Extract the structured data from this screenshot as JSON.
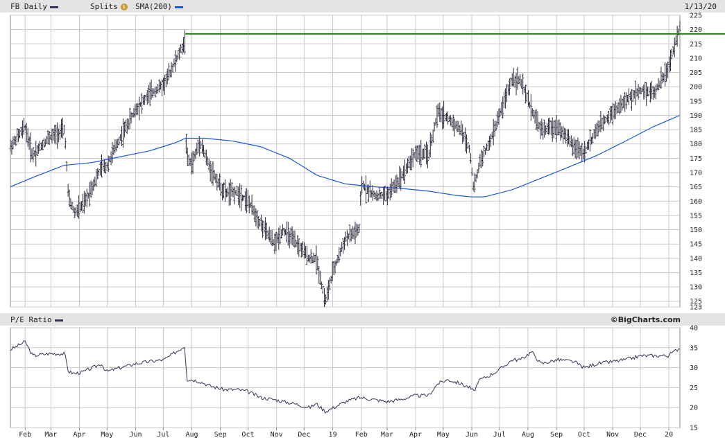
{
  "header": {
    "symbol_label": "FB Daily",
    "splits_label": "Splits",
    "splits_icon": "dollar-icon",
    "sma_label": "SMA(200)",
    "date": "1/13/20",
    "symbol_color": "#33335a",
    "sma_color": "#1a55e0"
  },
  "lower_header": {
    "pe_label": "P/E Ratio",
    "brand": "©BigCharts.com",
    "pe_color": "#33335a"
  },
  "accent": {
    "resistance_color": "#2e7d1a"
  },
  "chart_data": [
    {
      "type": "line",
      "title": "FB Daily",
      "subtype": "ohlc-bars-with-sma",
      "ylim": [
        123,
        225
      ],
      "yticks": [
        123,
        125,
        130,
        135,
        140,
        145,
        150,
        155,
        160,
        165,
        170,
        175,
        180,
        185,
        190,
        195,
        200,
        205,
        210,
        215,
        220,
        225
      ],
      "grid": true,
      "x_labels": [
        "Feb",
        "Mar",
        "Apr",
        "May",
        "Jun",
        "Jul",
        "Aug",
        "Sep",
        "Oct",
        "Nov",
        "Dec",
        "19",
        "Feb",
        "Mar",
        "Apr",
        "May",
        "Jun",
        "Jul",
        "Aug",
        "Sep",
        "Oct",
        "Nov",
        "Dec",
        "20"
      ],
      "resistance_level": 218.5,
      "series": [
        {
          "name": "FB Daily",
          "x": [
            "2018-01-16",
            "2018-02-01",
            "2018-02-09",
            "2018-02-26",
            "2018-03-16",
            "2018-03-20",
            "2018-03-27",
            "2018-04-06",
            "2018-04-25",
            "2018-04-30",
            "2018-05-15",
            "2018-06-01",
            "2018-06-15",
            "2018-07-02",
            "2018-07-25",
            "2018-07-26",
            "2018-08-01",
            "2018-08-10",
            "2018-08-20",
            "2018-09-05",
            "2018-09-20",
            "2018-10-01",
            "2018-10-15",
            "2018-10-30",
            "2018-11-08",
            "2018-11-20",
            "2018-12-07",
            "2018-12-14",
            "2018-12-24",
            "2019-01-02",
            "2019-01-15",
            "2019-01-30",
            "2019-02-01",
            "2019-02-15",
            "2019-03-01",
            "2019-03-15",
            "2019-04-01",
            "2019-04-15",
            "2019-04-25",
            "2019-05-06",
            "2019-05-20",
            "2019-05-30",
            "2019-06-03",
            "2019-06-10",
            "2019-06-20",
            "2019-07-01",
            "2019-07-15",
            "2019-07-24",
            "2019-08-05",
            "2019-08-15",
            "2019-09-03",
            "2019-09-20",
            "2019-10-01",
            "2019-10-15",
            "2019-10-31",
            "2019-11-15",
            "2019-12-02",
            "2019-12-16",
            "2019-12-31",
            "2020-01-13"
          ],
          "values": [
            179,
            186,
            176,
            182,
            185,
            161,
            156,
            159,
            172,
            172,
            182,
            192,
            197,
            201,
            216,
            175,
            173,
            181,
            172,
            163,
            163,
            160,
            152,
            145,
            150,
            146,
            140,
            140,
            125,
            136,
            147,
            150,
            166,
            162,
            162,
            168,
            177,
            176,
            191,
            189,
            185,
            178,
            164,
            174,
            180,
            190,
            203,
            202,
            192,
            185,
            186,
            179,
            177,
            185,
            191,
            195,
            199,
            198,
            206,
            221
          ]
        },
        {
          "name": "SMA(200)",
          "x": [
            "2018-01-16",
            "2018-02-15",
            "2018-03-15",
            "2018-04-15",
            "2018-05-15",
            "2018-06-15",
            "2018-07-15",
            "2018-07-25",
            "2018-08-15",
            "2018-09-15",
            "2018-10-15",
            "2018-11-15",
            "2018-12-15",
            "2019-01-15",
            "2019-02-15",
            "2019-03-15",
            "2019-04-15",
            "2019-05-15",
            "2019-05-31",
            "2019-06-15",
            "2019-07-15",
            "2019-08-15",
            "2019-09-15",
            "2019-10-15",
            "2019-11-15",
            "2019-12-15",
            "2020-01-13"
          ],
          "values": [
            165,
            169,
            172.5,
            173.5,
            175.5,
            177.5,
            180.5,
            182,
            182,
            181,
            179,
            175,
            169,
            166,
            165,
            164.5,
            163.5,
            162,
            161.5,
            161.5,
            164,
            168,
            172,
            176,
            181,
            186,
            190
          ]
        }
      ]
    },
    {
      "type": "line",
      "title": "P/E Ratio",
      "ylim": [
        15,
        40
      ],
      "yticks": [
        15,
        20,
        25,
        30,
        35,
        40
      ],
      "grid": true,
      "series": [
        {
          "name": "P/E Ratio",
          "x": [
            "2018-01-16",
            "2018-02-01",
            "2018-02-09",
            "2018-02-26",
            "2018-03-16",
            "2018-03-20",
            "2018-03-27",
            "2018-04-06",
            "2018-04-25",
            "2018-04-30",
            "2018-05-15",
            "2018-06-01",
            "2018-06-15",
            "2018-07-02",
            "2018-07-25",
            "2018-07-26",
            "2018-08-01",
            "2018-08-10",
            "2018-08-20",
            "2018-09-05",
            "2018-09-20",
            "2018-10-01",
            "2018-10-15",
            "2018-10-30",
            "2018-11-08",
            "2018-11-20",
            "2018-12-07",
            "2018-12-14",
            "2018-12-24",
            "2019-01-02",
            "2019-01-15",
            "2019-01-30",
            "2019-02-01",
            "2019-02-15",
            "2019-03-01",
            "2019-03-15",
            "2019-04-01",
            "2019-04-15",
            "2019-04-25",
            "2019-05-06",
            "2019-05-20",
            "2019-05-30",
            "2019-06-03",
            "2019-06-10",
            "2019-06-20",
            "2019-07-01",
            "2019-07-15",
            "2019-07-24",
            "2019-08-05",
            "2019-08-15",
            "2019-09-03",
            "2019-09-20",
            "2019-10-01",
            "2019-10-15",
            "2019-10-31",
            "2019-11-15",
            "2019-12-02",
            "2019-12-16",
            "2019-12-31",
            "2020-01-13"
          ],
          "values": [
            34.5,
            36.5,
            33,
            33.5,
            33.5,
            29,
            28.5,
            29,
            31,
            29,
            30,
            31,
            31.5,
            32,
            35.5,
            27,
            27,
            26.5,
            25.5,
            24.5,
            24.5,
            24,
            22.5,
            22,
            21.5,
            21,
            20,
            21,
            19,
            20,
            21.5,
            22.5,
            22.5,
            22,
            21.5,
            22,
            23,
            23,
            26,
            27,
            26,
            25,
            24,
            27,
            28,
            29.5,
            32,
            32,
            34,
            31,
            32,
            31.5,
            30,
            31,
            31.5,
            32,
            33,
            33,
            33,
            35
          ]
        }
      ]
    }
  ]
}
